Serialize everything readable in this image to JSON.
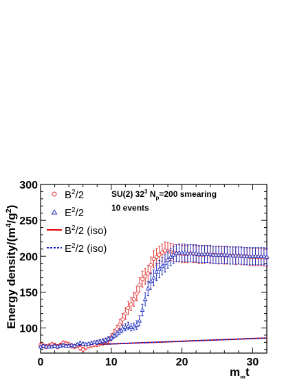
{
  "chart_data": {
    "type": "scatter",
    "xlabel": "m",
    "xlabel_sub": "∞",
    "xlabel_suffix": "t",
    "ylabel": "Energy density/(m",
    "ylabel_sup": "4",
    "ylabel_mid": "/g",
    "ylabel_sup2": "2",
    "ylabel_end": ")",
    "xlim": [
      0,
      32
    ],
    "ylim": [
      65,
      300
    ],
    "xticks": [
      0,
      10,
      20,
      30
    ],
    "yticks": [
      100,
      150,
      200,
      250,
      300
    ],
    "annotations": [
      {
        "parts": [
          "SU(2) 32",
          "3",
          " N",
          "p",
          "=200 smearing"
        ]
      },
      {
        "parts": [
          "10 events"
        ]
      }
    ],
    "legend_position": "top-left",
    "series": [
      {
        "name": "B",
        "name_sup": "2",
        "name_suffix": "/2",
        "marker": "circle",
        "color": "#e03030",
        "x": [
          0,
          0.4,
          0.8,
          1.2,
          1.6,
          2,
          2.4,
          2.8,
          3.2,
          3.6,
          4,
          4.4,
          4.8,
          5.2,
          5.6,
          6,
          6.4,
          6.8,
          7.2,
          7.6,
          8,
          8.4,
          8.8,
          9.2,
          9.6,
          10,
          10.4,
          10.8,
          11.2,
          11.6,
          12,
          12.4,
          12.8,
          13.2,
          13.6,
          14,
          14.4,
          14.8,
          15.2,
          15.6,
          16,
          16.4,
          16.8,
          17.2,
          17.6,
          18,
          18.4,
          18.8,
          19.2,
          19.6,
          20,
          20.4,
          20.8,
          21.2,
          21.6,
          22,
          22.4,
          22.8,
          23.2,
          23.6,
          24,
          24.4,
          24.8,
          25.2,
          25.6,
          26,
          26.4,
          26.8,
          27.2,
          27.6,
          28,
          28.4,
          28.8,
          29.2,
          29.6,
          30,
          30.4,
          30.8,
          31.2,
          31.6,
          32
        ],
        "y": [
          76,
          75,
          74,
          75,
          77,
          76,
          74,
          76,
          79,
          78,
          77,
          75,
          74,
          76,
          72,
          70,
          73,
          75,
          76,
          77,
          78,
          79,
          80,
          81,
          83,
          87,
          92,
          98,
          105,
          112,
          120,
          128,
          133,
          140,
          148,
          160,
          168,
          172,
          176,
          188,
          196,
          199,
          202,
          205,
          208,
          207,
          206,
          205,
          204,
          204,
          203,
          203,
          203,
          204,
          203,
          203,
          202,
          202,
          202,
          203,
          202,
          202,
          202,
          201,
          202,
          201,
          201,
          201,
          201,
          200,
          201,
          200,
          200,
          200,
          199,
          199,
          199,
          199,
          199,
          198,
          198
        ],
        "err": [
          3,
          3,
          3,
          3,
          3,
          3,
          3,
          3,
          3,
          3,
          3,
          3,
          3,
          3,
          3,
          3,
          3,
          3,
          3,
          3,
          4,
          4,
          4,
          4,
          4,
          5,
          6,
          6,
          7,
          8,
          8,
          9,
          9,
          10,
          10,
          10,
          11,
          11,
          11,
          11,
          12,
          12,
          12,
          12,
          12,
          12,
          12,
          12,
          12,
          12,
          12,
          12,
          12,
          12,
          12,
          12,
          12,
          12,
          12,
          12,
          12,
          12,
          12,
          12,
          12,
          12,
          12,
          12,
          12,
          12,
          12,
          12,
          12,
          12,
          12,
          12,
          12,
          12,
          12,
          12,
          12
        ]
      },
      {
        "name": "E",
        "name_sup": "2",
        "name_suffix": "/2",
        "marker": "triangle",
        "color": "#2030c0",
        "x": [
          0,
          0.4,
          0.8,
          1.2,
          1.6,
          2,
          2.4,
          2.8,
          3.2,
          3.6,
          4,
          4.4,
          4.8,
          5.2,
          5.6,
          6,
          6.4,
          6.8,
          7.2,
          7.6,
          8,
          8.4,
          8.8,
          9.2,
          9.6,
          10,
          10.4,
          10.8,
          11.2,
          11.6,
          12,
          12.4,
          12.8,
          13.2,
          13.6,
          14,
          14.4,
          14.8,
          15.2,
          15.6,
          16,
          16.4,
          16.8,
          17.2,
          17.6,
          18,
          18.4,
          18.8,
          19.2,
          19.6,
          20,
          20.4,
          20.8,
          21.2,
          21.6,
          22,
          22.4,
          22.8,
          23.2,
          23.6,
          24,
          24.4,
          24.8,
          25.2,
          25.6,
          26,
          26.4,
          26.8,
          27.2,
          27.6,
          28,
          28.4,
          28.8,
          29.2,
          29.6,
          30,
          30.4,
          30.8,
          31.2,
          31.6,
          32
        ],
        "y": [
          74,
          75,
          74,
          74,
          74,
          75,
          74,
          75,
          76,
          75,
          75,
          76,
          75,
          77,
          79,
          78,
          77,
          78,
          79,
          80,
          80,
          81,
          82,
          83,
          85,
          86,
          89,
          92,
          95,
          99,
          101,
          103,
          101,
          102,
          104,
          110,
          125,
          140,
          155,
          165,
          170,
          178,
          182,
          186,
          190,
          195,
          199,
          202,
          204,
          205,
          205,
          205,
          204,
          204,
          204,
          204,
          203,
          203,
          203,
          203,
          203,
          202,
          202,
          202,
          202,
          202,
          202,
          201,
          201,
          201,
          201,
          201,
          200,
          200,
          200,
          200,
          200,
          200,
          200,
          200,
          199
        ],
        "err": [
          2,
          2,
          2,
          2,
          2,
          2,
          2,
          2,
          2,
          2,
          2,
          2,
          2,
          2,
          2,
          2,
          2,
          2,
          2,
          2,
          3,
          3,
          3,
          3,
          3,
          3,
          3,
          4,
          4,
          5,
          5,
          5,
          5,
          5,
          6,
          7,
          8,
          9,
          10,
          11,
          11,
          12,
          12,
          12,
          12,
          12,
          12,
          12,
          12,
          12,
          12,
          12,
          12,
          12,
          12,
          12,
          12,
          12,
          12,
          12,
          12,
          12,
          12,
          12,
          12,
          12,
          12,
          12,
          12,
          12,
          12,
          12,
          12,
          12,
          12,
          12,
          12,
          12,
          12,
          12,
          12
        ]
      },
      {
        "name": "B",
        "name_sup": "2",
        "name_suffix": "/2 (iso)",
        "marker": "line-solid",
        "color": "#e00000",
        "x": [
          0,
          32
        ],
        "y": [
          74,
          86
        ]
      },
      {
        "name": "E",
        "name_sup": "2",
        "name_suffix": "/2 (iso)",
        "marker": "line-dashed",
        "color": "#1020d0",
        "x": [
          0,
          32
        ],
        "y": [
          74,
          86
        ]
      }
    ]
  }
}
